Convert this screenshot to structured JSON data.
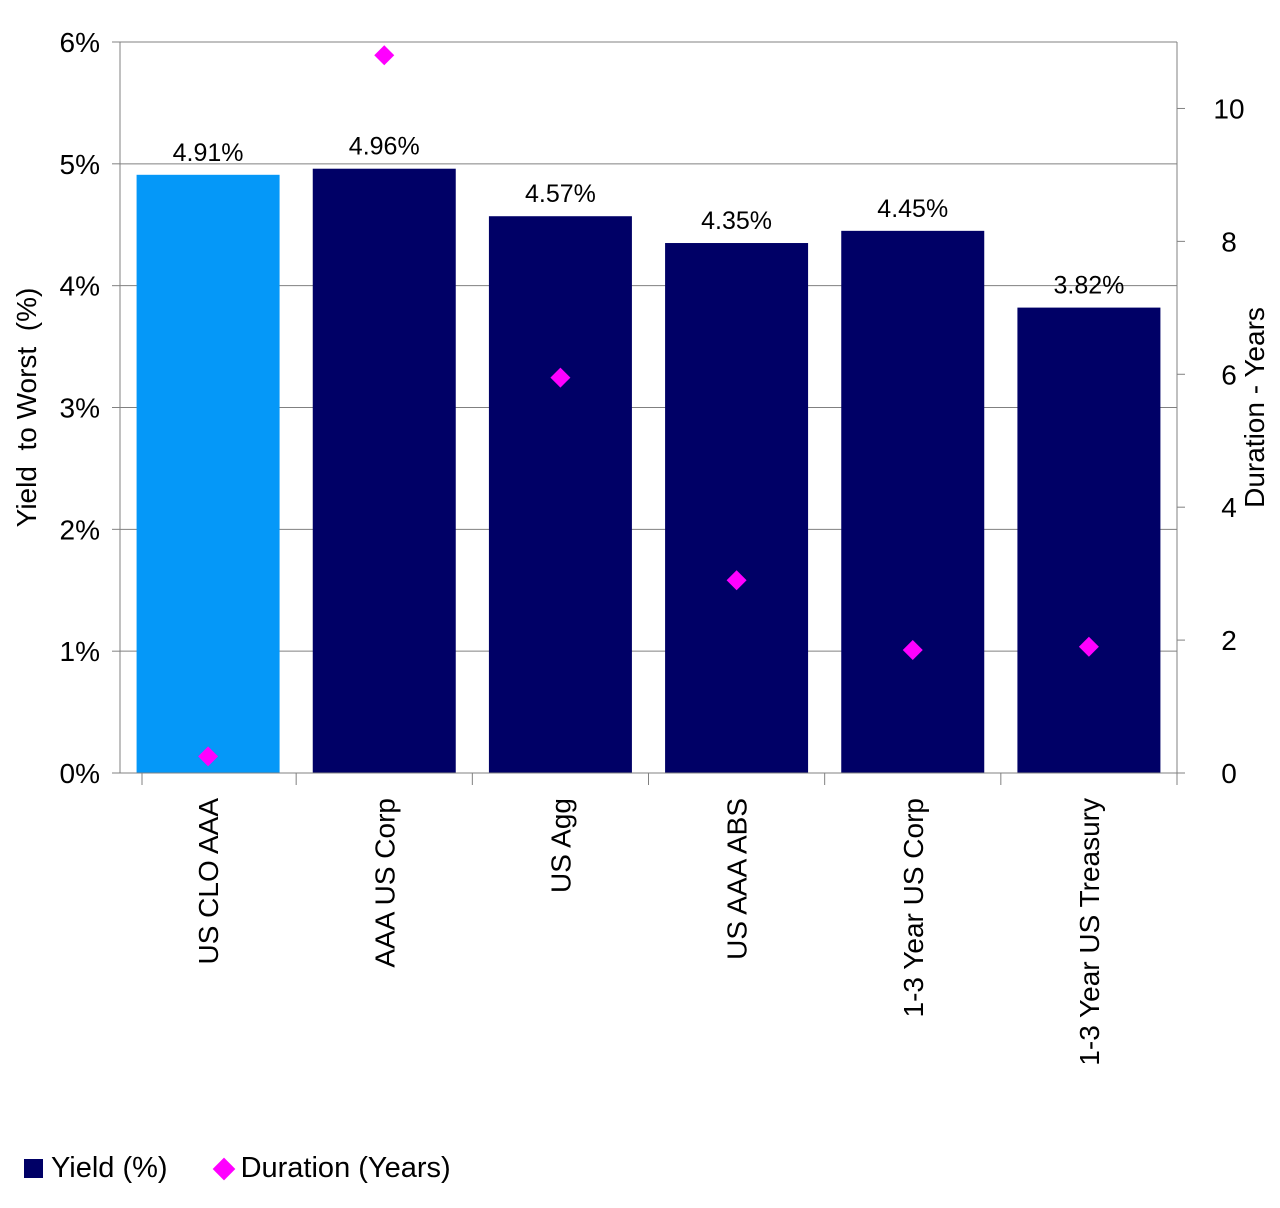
{
  "chart_data": {
    "type": "bar",
    "categories": [
      "US CLO AAA",
      "AAA US Corp",
      "US Agg",
      "US AAA ABS",
      "1-3 Year US Corp",
      "1-3 Year US Treasury"
    ],
    "series": [
      {
        "name": "Yield (%)",
        "type": "bar",
        "axis": "left",
        "values": [
          4.91,
          4.96,
          4.57,
          4.35,
          4.45,
          3.82
        ],
        "data_labels": [
          "4.91%",
          "4.96%",
          "4.57%",
          "4.35%",
          "4.45%",
          "3.82%"
        ]
      },
      {
        "name": "Duration (Years)",
        "type": "scatter",
        "axis": "right",
        "values": [
          0.25,
          10.8,
          5.95,
          2.9,
          1.85,
          1.9
        ]
      }
    ],
    "ylabel": "Yield  to Worst  (%)",
    "y2label": "Duration - Years",
    "ylim": [
      0,
      6
    ],
    "y2lim": [
      0,
      11
    ],
    "yticks": [
      0,
      1,
      2,
      3,
      4,
      5,
      6
    ],
    "ytick_labels": [
      "0%",
      "1%",
      "2%",
      "3%",
      "4%",
      "5%",
      "6%"
    ],
    "y2ticks": [
      0,
      2,
      4,
      6,
      8,
      10
    ],
    "y2tick_labels": [
      "0",
      "2",
      "4",
      "6",
      "8",
      "10"
    ],
    "grid": true,
    "legend": "bottom-left"
  },
  "colors": {
    "highlight_bar": "#0598F8",
    "bar": "#000066",
    "marker": "#FF00FF",
    "grid": "#808080"
  },
  "legend": {
    "yield_label": "Yield (%)",
    "duration_label": "Duration (Years)"
  }
}
